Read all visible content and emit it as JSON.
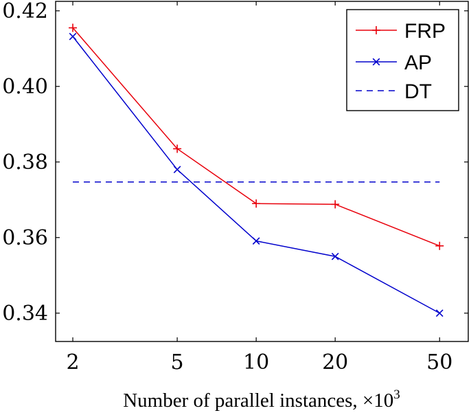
{
  "chart_data": {
    "type": "line",
    "title": "",
    "xlabel": "Number of parallel instances, ×10",
    "xlabel_exponent": "3",
    "ylabel": "",
    "x_scale": "log",
    "xlim": [
      1.72,
      64.3
    ],
    "ylim": [
      0.3325,
      0.4225
    ],
    "x_ticks": [
      2,
      5,
      10,
      20,
      50
    ],
    "x_tick_labels": [
      "2",
      "5",
      "10",
      "20",
      "50"
    ],
    "y_ticks": [
      0.34,
      0.36,
      0.38,
      0.4,
      0.42
    ],
    "y_tick_labels": [
      "0.34",
      "0.36",
      "0.38",
      "0.40",
      "0.42"
    ],
    "grid": false,
    "legend_position": "top-right",
    "series": [
      {
        "name": "FRP",
        "color": "#e8000b",
        "marker": "plus",
        "dash": "solid",
        "x": [
          2,
          5,
          10,
          20,
          50
        ],
        "values": [
          0.4155,
          0.3835,
          0.369,
          0.3688,
          0.3578
        ]
      },
      {
        "name": "AP",
        "color": "#0000cc",
        "marker": "cross",
        "dash": "solid",
        "x": [
          2,
          5,
          10,
          20,
          50
        ],
        "values": [
          0.4132,
          0.378,
          0.3591,
          0.355,
          0.34
        ]
      },
      {
        "name": "DT",
        "color": "#0000cc",
        "marker": "none",
        "dash": "dashed",
        "x": [
          2,
          50
        ],
        "values": [
          0.3747,
          0.3747
        ]
      }
    ]
  }
}
